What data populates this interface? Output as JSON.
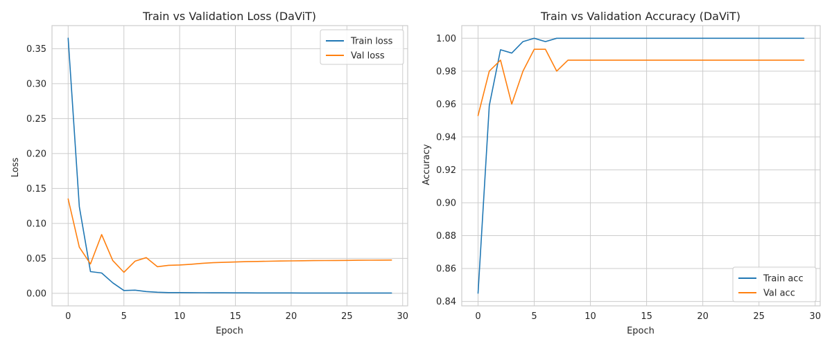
{
  "colors": {
    "train": "#1f77b4",
    "val": "#ff7f0e",
    "grid": "#cccccc",
    "frame": "#cccccc"
  },
  "chart_data": [
    {
      "type": "line",
      "title": "Train vs Validation Loss (DaViT)",
      "xlabel": "Epoch",
      "ylabel": "Loss",
      "xlim": [
        -1.45,
        30.45
      ],
      "ylim": [
        -0.018,
        0.383
      ],
      "xticks": [
        0,
        5,
        10,
        15,
        20,
        25,
        30
      ],
      "xtick_labels": [
        "0",
        "5",
        "10",
        "15",
        "20",
        "25",
        "30"
      ],
      "yticks": [
        0.0,
        0.05,
        0.1,
        0.15,
        0.2,
        0.25,
        0.3,
        0.35
      ],
      "ytick_labels": [
        "0.00",
        "0.05",
        "0.10",
        "0.15",
        "0.20",
        "0.25",
        "0.30",
        "0.35"
      ],
      "legend": "top-right",
      "x": [
        0,
        1,
        2,
        3,
        4,
        5,
        6,
        7,
        8,
        9,
        10,
        11,
        12,
        13,
        14,
        15,
        16,
        17,
        18,
        19,
        20,
        21,
        22,
        23,
        24,
        25,
        26,
        27,
        28,
        29
      ],
      "series": [
        {
          "name": "Train loss",
          "color_key": "train",
          "values": [
            0.365,
            0.124,
            0.031,
            0.029,
            0.015,
            0.004,
            0.0045,
            0.0025,
            0.0015,
            0.001,
            0.001,
            0.0009,
            0.0008,
            0.0007,
            0.0007,
            0.0006,
            0.0006,
            0.0005,
            0.0005,
            0.0005,
            0.0005,
            0.0004,
            0.0004,
            0.0004,
            0.0004,
            0.0004,
            0.0004,
            0.0004,
            0.0004,
            0.0004
          ]
        },
        {
          "name": "Val loss",
          "color_key": "val",
          "values": [
            0.135,
            0.066,
            0.042,
            0.084,
            0.047,
            0.03,
            0.046,
            0.051,
            0.038,
            0.04,
            0.0405,
            0.0415,
            0.0428,
            0.0438,
            0.0443,
            0.0448,
            0.0453,
            0.0456,
            0.0459,
            0.0462,
            0.0464,
            0.0466,
            0.0468,
            0.0469,
            0.047,
            0.0471,
            0.0472,
            0.0473,
            0.0474,
            0.0475
          ]
        }
      ]
    },
    {
      "type": "line",
      "title": "Train vs Validation Accuracy (DaViT)",
      "xlabel": "Epoch",
      "ylabel": "Accuracy",
      "xlim": [
        -1.45,
        30.45
      ],
      "ylim": [
        0.8373,
        1.0077
      ],
      "xticks": [
        0,
        5,
        10,
        15,
        20,
        25,
        30
      ],
      "xtick_labels": [
        "0",
        "5",
        "10",
        "15",
        "20",
        "25",
        "30"
      ],
      "yticks": [
        0.84,
        0.86,
        0.88,
        0.9,
        0.92,
        0.94,
        0.96,
        0.98,
        1.0
      ],
      "ytick_labels": [
        "0.84",
        "0.86",
        "0.88",
        "0.90",
        "0.92",
        "0.94",
        "0.96",
        "0.98",
        "1.00"
      ],
      "legend": "bottom-right",
      "x": [
        0,
        1,
        2,
        3,
        4,
        5,
        6,
        7,
        8,
        9,
        10,
        11,
        12,
        13,
        14,
        15,
        16,
        17,
        18,
        19,
        20,
        21,
        22,
        23,
        24,
        25,
        26,
        27,
        28,
        29
      ],
      "series": [
        {
          "name": "Train acc",
          "color_key": "train",
          "values": [
            0.845,
            0.959,
            0.993,
            0.991,
            0.998,
            1.0,
            0.998,
            1.0,
            1.0,
            1.0,
            1.0,
            1.0,
            1.0,
            1.0,
            1.0,
            1.0,
            1.0,
            1.0,
            1.0,
            1.0,
            1.0,
            1.0,
            1.0,
            1.0,
            1.0,
            1.0,
            1.0,
            1.0,
            1.0,
            1.0
          ]
        },
        {
          "name": "Val acc",
          "color_key": "val",
          "values": [
            0.953,
            0.98,
            0.9867,
            0.96,
            0.98,
            0.9933,
            0.9933,
            0.98,
            0.9867,
            0.9867,
            0.9867,
            0.9867,
            0.9867,
            0.9867,
            0.9867,
            0.9867,
            0.9867,
            0.9867,
            0.9867,
            0.9867,
            0.9867,
            0.9867,
            0.9867,
            0.9867,
            0.9867,
            0.9867,
            0.9867,
            0.9867,
            0.9867,
            0.9867
          ]
        }
      ]
    }
  ]
}
